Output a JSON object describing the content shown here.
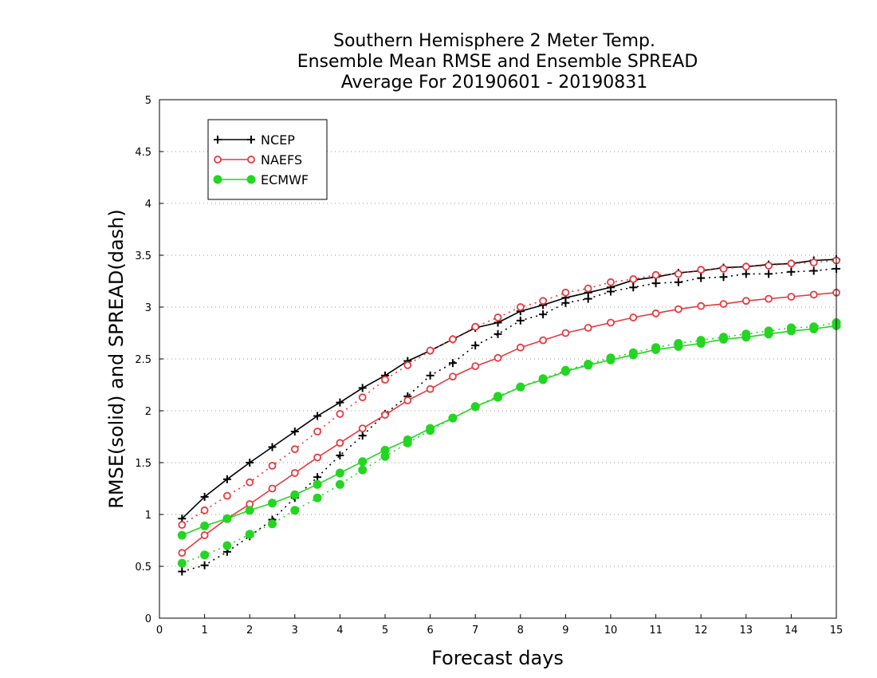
{
  "chart_data": {
    "type": "line",
    "title": [
      "Southern Hemisphere 2 Meter Temp.",
      "Ensemble Mean RMSE and Ensemble SPREAD",
      "Average For 20190601 - 20190831"
    ],
    "xlabel": "Forecast days",
    "ylabel": "RMSE(solid) and SPREAD(dash)",
    "xlim": [
      0,
      15
    ],
    "ylim": [
      0,
      5
    ],
    "x_ticks": [
      "0",
      "1",
      "2",
      "3",
      "4",
      "5",
      "6",
      "7",
      "8",
      "9",
      "10",
      "11",
      "12",
      "13",
      "14",
      "15"
    ],
    "y_ticks": [
      "0",
      "0.5",
      "1",
      "1.5",
      "2",
      "2.5",
      "3",
      "3.5",
      "4",
      "4.5",
      "5"
    ],
    "grid": "horizontal dotted",
    "legend_position": "top-left",
    "x": [
      0.5,
      1,
      1.5,
      2,
      2.5,
      3,
      3.5,
      4,
      4.5,
      5,
      5.5,
      6,
      6.5,
      7,
      7.5,
      8,
      8.5,
      9,
      9.5,
      10,
      10.5,
      11,
      11.5,
      12,
      12.5,
      13,
      13.5,
      14,
      14.5,
      15
    ],
    "series": [
      {
        "name": "NCEP",
        "color": "#000000",
        "marker": "plus",
        "style": "solid",
        "values": [
          0.96,
          1.17,
          1.34,
          1.5,
          1.65,
          1.8,
          1.95,
          2.08,
          2.22,
          2.34,
          2.48,
          2.58,
          2.69,
          2.8,
          2.85,
          2.96,
          3.02,
          3.09,
          3.14,
          3.19,
          3.26,
          3.29,
          3.33,
          3.35,
          3.38,
          3.39,
          3.41,
          3.42,
          3.45,
          3.46
        ]
      },
      {
        "name": "NCEP",
        "color": "#000000",
        "marker": "plus",
        "style": "dash",
        "values": [
          0.45,
          0.51,
          0.64,
          0.79,
          0.95,
          1.16,
          1.36,
          1.57,
          1.76,
          1.97,
          2.14,
          2.34,
          2.46,
          2.63,
          2.74,
          2.87,
          2.93,
          3.04,
          3.08,
          3.15,
          3.19,
          3.23,
          3.24,
          3.28,
          3.29,
          3.32,
          3.32,
          3.34,
          3.35,
          3.37
        ]
      },
      {
        "name": "NAEFS",
        "color": "#e8383d",
        "marker": "open-circle",
        "style": "solid",
        "values": [
          0.63,
          0.8,
          0.96,
          1.1,
          1.25,
          1.4,
          1.55,
          1.69,
          1.83,
          1.96,
          2.1,
          2.21,
          2.33,
          2.43,
          2.51,
          2.61,
          2.68,
          2.75,
          2.8,
          2.85,
          2.9,
          2.94,
          2.98,
          3.01,
          3.03,
          3.06,
          3.08,
          3.1,
          3.12,
          3.14
        ]
      },
      {
        "name": "NAEFS",
        "color": "#e8383d",
        "marker": "open-circle",
        "style": "dash",
        "values": [
          0.9,
          1.04,
          1.18,
          1.31,
          1.47,
          1.63,
          1.8,
          1.97,
          2.13,
          2.3,
          2.44,
          2.58,
          2.69,
          2.81,
          2.9,
          3.0,
          3.06,
          3.14,
          3.18,
          3.24,
          3.27,
          3.31,
          3.32,
          3.36,
          3.37,
          3.39,
          3.4,
          3.42,
          3.43,
          3.45
        ]
      },
      {
        "name": "ECMWF",
        "color": "#22d622",
        "marker": "filled-circle",
        "style": "solid",
        "values": [
          0.8,
          0.89,
          0.96,
          1.04,
          1.11,
          1.19,
          1.29,
          1.4,
          1.51,
          1.62,
          1.72,
          1.83,
          1.93,
          2.04,
          2.13,
          2.23,
          2.3,
          2.38,
          2.44,
          2.49,
          2.54,
          2.59,
          2.62,
          2.65,
          2.69,
          2.71,
          2.74,
          2.77,
          2.79,
          2.82
        ]
      },
      {
        "name": "ECMWF",
        "color": "#22d622",
        "marker": "filled-circle",
        "style": "dash",
        "values": [
          0.53,
          0.61,
          0.7,
          0.81,
          0.91,
          1.04,
          1.16,
          1.29,
          1.43,
          1.56,
          1.69,
          1.81,
          1.93,
          2.04,
          2.14,
          2.23,
          2.31,
          2.39,
          2.45,
          2.51,
          2.56,
          2.61,
          2.65,
          2.68,
          2.71,
          2.74,
          2.77,
          2.8,
          2.81,
          2.85
        ]
      }
    ],
    "legend": [
      {
        "label": "NCEP",
        "color": "#000000",
        "marker": "plus"
      },
      {
        "label": "NAEFS",
        "color": "#e8383d",
        "marker": "open-circle"
      },
      {
        "label": "ECMWF",
        "color": "#22d622",
        "marker": "filled-circle"
      }
    ]
  }
}
